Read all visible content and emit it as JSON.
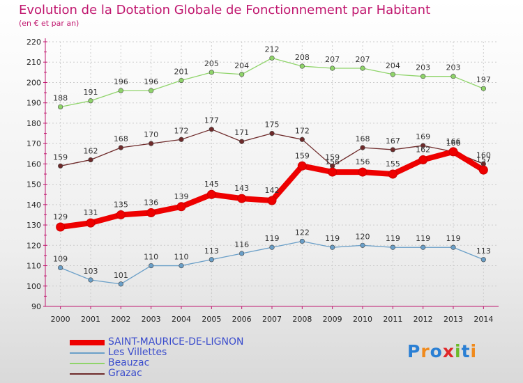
{
  "chart_data": {
    "type": "line",
    "title": "Evolution de la Dotation Globale de Fonctionnement par Habitant",
    "subtitle": "(en € et par an)",
    "x": [
      "2000",
      "2001",
      "2002",
      "2003",
      "2004",
      "2005",
      "2006",
      "2007",
      "2008",
      "2009",
      "2010",
      "2011",
      "2012",
      "2013",
      "2014"
    ],
    "ylim": [
      90,
      220
    ],
    "yticks": [
      90,
      100,
      110,
      120,
      130,
      140,
      150,
      160,
      170,
      180,
      190,
      200,
      210,
      220
    ],
    "grid": true,
    "legend_position": "bottom-left",
    "series": [
      {
        "name": "SAINT-MAURICE-DE-LIGNON",
        "color": "#ee0000",
        "values": [
          129,
          131,
          135,
          136,
          139,
          145,
          143,
          142,
          159,
          156,
          156,
          155,
          162,
          166,
          157
        ]
      },
      {
        "name": "Les Villettes",
        "color": "#6a9fc8",
        "values": [
          109,
          103,
          101,
          110,
          110,
          113,
          116,
          119,
          122,
          119,
          120,
          119,
          119,
          119,
          113
        ]
      },
      {
        "name": "Beauzac",
        "color": "#8fd46a",
        "values": [
          188,
          191,
          196,
          196,
          201,
          205,
          204,
          212,
          208,
          207,
          207,
          204,
          203,
          203,
          197
        ]
      },
      {
        "name": "Grazac",
        "color": "#6e2a2a",
        "values": [
          159,
          162,
          168,
          170,
          172,
          177,
          171,
          175,
          172,
          159,
          168,
          167,
          169,
          166,
          160
        ]
      }
    ]
  },
  "brand": {
    "text": "Proxiti"
  }
}
